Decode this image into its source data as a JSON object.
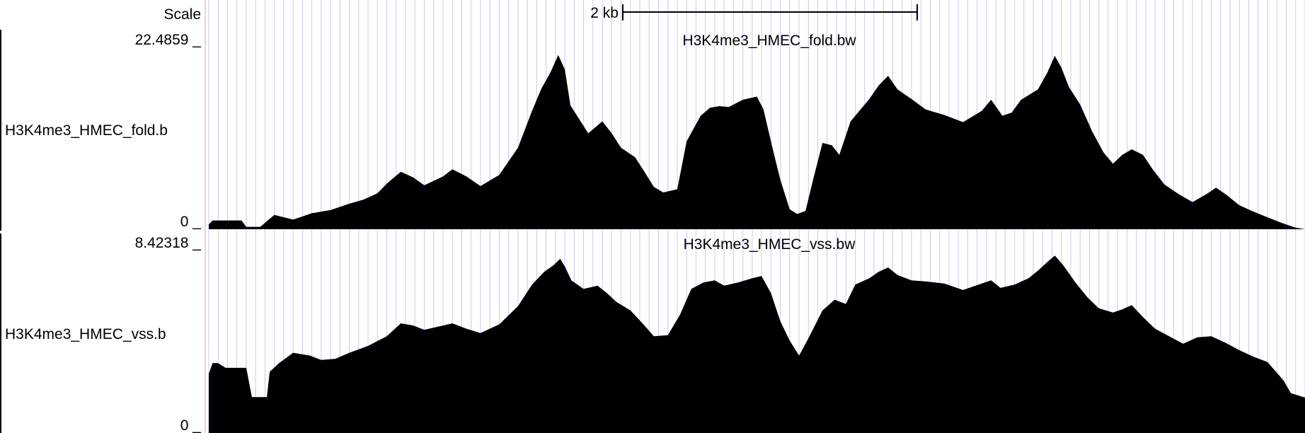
{
  "scale": {
    "label": "Scale",
    "bar_label": "2 kb",
    "bar_kb": 2
  },
  "colors": {
    "grid": "#c8c8f0",
    "signal": "#000000",
    "divider": "#e0a0b0"
  },
  "chart_data": [
    {
      "type": "area",
      "title": "H3K4me3_HMEC_fold.bw",
      "side_label": "H3K4me3_HMEC_fold.b",
      "ymax_label": "22.4859 _",
      "ymin_label": "0 _",
      "ylim": [
        0,
        22.4859
      ],
      "points": [
        [
          0,
          0.6
        ],
        [
          0.4,
          1.1
        ],
        [
          3.5,
          1.1
        ],
        [
          4,
          0.3
        ],
        [
          5.5,
          0.3
        ],
        [
          7,
          1.8
        ],
        [
          9,
          1.2
        ],
        [
          11,
          2
        ],
        [
          13,
          2.4
        ],
        [
          15,
          3.2
        ],
        [
          16.5,
          3.7
        ],
        [
          18,
          4.5
        ],
        [
          19,
          5.7
        ],
        [
          20.5,
          7.2
        ],
        [
          21.8,
          6.5
        ],
        [
          23,
          5.5
        ],
        [
          25,
          6.6
        ],
        [
          26,
          7.5
        ],
        [
          27.5,
          6.6
        ],
        [
          29,
          5.4
        ],
        [
          31,
          6.8
        ],
        [
          33,
          10.2
        ],
        [
          34.5,
          14.8
        ],
        [
          35.5,
          17.6
        ],
        [
          36.5,
          19.7
        ],
        [
          37.3,
          21.8
        ],
        [
          38,
          20
        ],
        [
          38.6,
          15.5
        ],
        [
          40.5,
          12
        ],
        [
          42,
          13.5
        ],
        [
          43,
          12
        ],
        [
          44,
          10.2
        ],
        [
          45.5,
          9
        ],
        [
          46.5,
          7.2
        ],
        [
          47.5,
          5.3
        ],
        [
          48.5,
          4.6
        ],
        [
          50,
          5
        ],
        [
          51,
          11
        ],
        [
          52.5,
          14.2
        ],
        [
          53.5,
          15.2
        ],
        [
          54.5,
          15.4
        ],
        [
          55.5,
          15.3
        ],
        [
          57,
          16.2
        ],
        [
          58.5,
          16.6
        ],
        [
          59.2,
          15
        ],
        [
          60.2,
          10
        ],
        [
          61,
          6.2
        ],
        [
          62,
          2.5
        ],
        [
          62.8,
          1.9
        ],
        [
          63.7,
          2.3
        ],
        [
          64.5,
          6.2
        ],
        [
          65.5,
          10.8
        ],
        [
          66.5,
          10.5
        ],
        [
          67.3,
          9.3
        ],
        [
          68.5,
          13.5
        ],
        [
          70.5,
          16.3
        ],
        [
          71.5,
          18
        ],
        [
          72.5,
          19.2
        ],
        [
          73.5,
          17.5
        ],
        [
          75,
          16.3
        ],
        [
          76.5,
          15
        ],
        [
          78.5,
          14.3
        ],
        [
          80.5,
          13.4
        ],
        [
          82.5,
          14.8
        ],
        [
          83.5,
          16.2
        ],
        [
          84.7,
          14.2
        ],
        [
          85.7,
          14.6
        ],
        [
          86.7,
          16.2
        ],
        [
          88.5,
          17.5
        ],
        [
          89.5,
          19.6
        ],
        [
          90.3,
          21.7
        ],
        [
          91,
          20.2
        ],
        [
          91.8,
          17.8
        ],
        [
          93,
          15.6
        ],
        [
          94.3,
          12.2
        ],
        [
          95.5,
          9.6
        ],
        [
          96.5,
          8.2
        ],
        [
          97.5,
          9.3
        ],
        [
          98.5,
          10
        ],
        [
          99.7,
          9.3
        ],
        [
          100.8,
          7.4
        ],
        [
          102,
          5.6
        ],
        [
          103.5,
          4.4
        ],
        [
          105,
          3.4
        ],
        [
          106.5,
          4.4
        ],
        [
          107.5,
          5.2
        ],
        [
          108.5,
          4.4
        ],
        [
          110,
          3
        ],
        [
          111.5,
          2.2
        ],
        [
          113,
          1.5
        ],
        [
          114.5,
          0.8
        ],
        [
          116,
          0.2
        ],
        [
          117,
          0
        ]
      ]
    },
    {
      "type": "area",
      "title": "H3K4me3_HMEC_vss.bw",
      "side_label": "H3K4me3_HMEC_vss.b",
      "ymax_label": "8.42318 _",
      "ymin_label": "0 _",
      "ylim": [
        0,
        8.42318
      ],
      "points": [
        [
          0,
          2.75
        ],
        [
          0.4,
          3.25
        ],
        [
          1,
          3.25
        ],
        [
          1.8,
          3.03
        ],
        [
          4,
          3.03
        ],
        [
          4.6,
          1.67
        ],
        [
          6.2,
          1.67
        ],
        [
          6.5,
          2.85
        ],
        [
          7.5,
          3.25
        ],
        [
          9,
          3.73
        ],
        [
          10.8,
          3.6
        ],
        [
          12,
          3.4
        ],
        [
          13.5,
          3.45
        ],
        [
          15,
          3.73
        ],
        [
          17,
          4.05
        ],
        [
          19,
          4.5
        ],
        [
          20.5,
          5.1
        ],
        [
          21.8,
          5.0
        ],
        [
          23,
          4.8
        ],
        [
          24.5,
          4.95
        ],
        [
          26,
          5.1
        ],
        [
          27.5,
          4.85
        ],
        [
          29,
          4.65
        ],
        [
          31,
          5.05
        ],
        [
          33,
          5.9
        ],
        [
          34.5,
          6.9
        ],
        [
          35.8,
          7.5
        ],
        [
          36.8,
          7.8
        ],
        [
          37.5,
          8.1
        ],
        [
          38,
          7.75
        ],
        [
          38.7,
          7.1
        ],
        [
          40,
          6.7
        ],
        [
          41.5,
          6.85
        ],
        [
          42.5,
          6.5
        ],
        [
          43.5,
          6.1
        ],
        [
          45,
          5.7
        ],
        [
          46.5,
          5.0
        ],
        [
          47.5,
          4.5
        ],
        [
          49,
          4.55
        ],
        [
          50.3,
          5.5
        ],
        [
          51.5,
          6.7
        ],
        [
          52.8,
          7.0
        ],
        [
          54,
          7.1
        ],
        [
          55,
          6.85
        ],
        [
          56.5,
          7.0
        ],
        [
          58,
          7.2
        ],
        [
          59,
          7.3
        ],
        [
          60,
          6.5
        ],
        [
          61,
          5.2
        ],
        [
          62,
          4.3
        ],
        [
          63,
          3.6
        ],
        [
          64,
          4.4
        ],
        [
          65.5,
          5.7
        ],
        [
          66.8,
          6.2
        ],
        [
          68,
          6.0
        ],
        [
          69,
          6.9
        ],
        [
          70.5,
          7.2
        ],
        [
          71.5,
          7.5
        ],
        [
          72.5,
          7.7
        ],
        [
          73.5,
          7.35
        ],
        [
          75,
          7.1
        ],
        [
          76.5,
          7.05
        ],
        [
          78.5,
          6.95
        ],
        [
          80.5,
          6.65
        ],
        [
          82.5,
          6.95
        ],
        [
          83.5,
          7.1
        ],
        [
          84.5,
          6.75
        ],
        [
          86,
          6.9
        ],
        [
          87.5,
          7.2
        ],
        [
          88.5,
          7.55
        ],
        [
          89.5,
          7.95
        ],
        [
          90.3,
          8.25
        ],
        [
          91.2,
          7.8
        ],
        [
          92.5,
          7.0
        ],
        [
          93.8,
          6.3
        ],
        [
          95,
          5.8
        ],
        [
          96.5,
          5.6
        ],
        [
          97.5,
          5.75
        ],
        [
          98.5,
          5.95
        ],
        [
          99.8,
          5.35
        ],
        [
          101,
          4.85
        ],
        [
          102.5,
          4.5
        ],
        [
          104,
          4.15
        ],
        [
          105.5,
          4.45
        ],
        [
          107,
          4.5
        ],
        [
          108.5,
          4.2
        ],
        [
          110,
          3.85
        ],
        [
          111.5,
          3.55
        ],
        [
          113,
          3.3
        ],
        [
          114,
          2.8
        ],
        [
          114.7,
          2.45
        ],
        [
          115.5,
          1.85
        ],
        [
          117,
          1.65
        ]
      ]
    }
  ]
}
